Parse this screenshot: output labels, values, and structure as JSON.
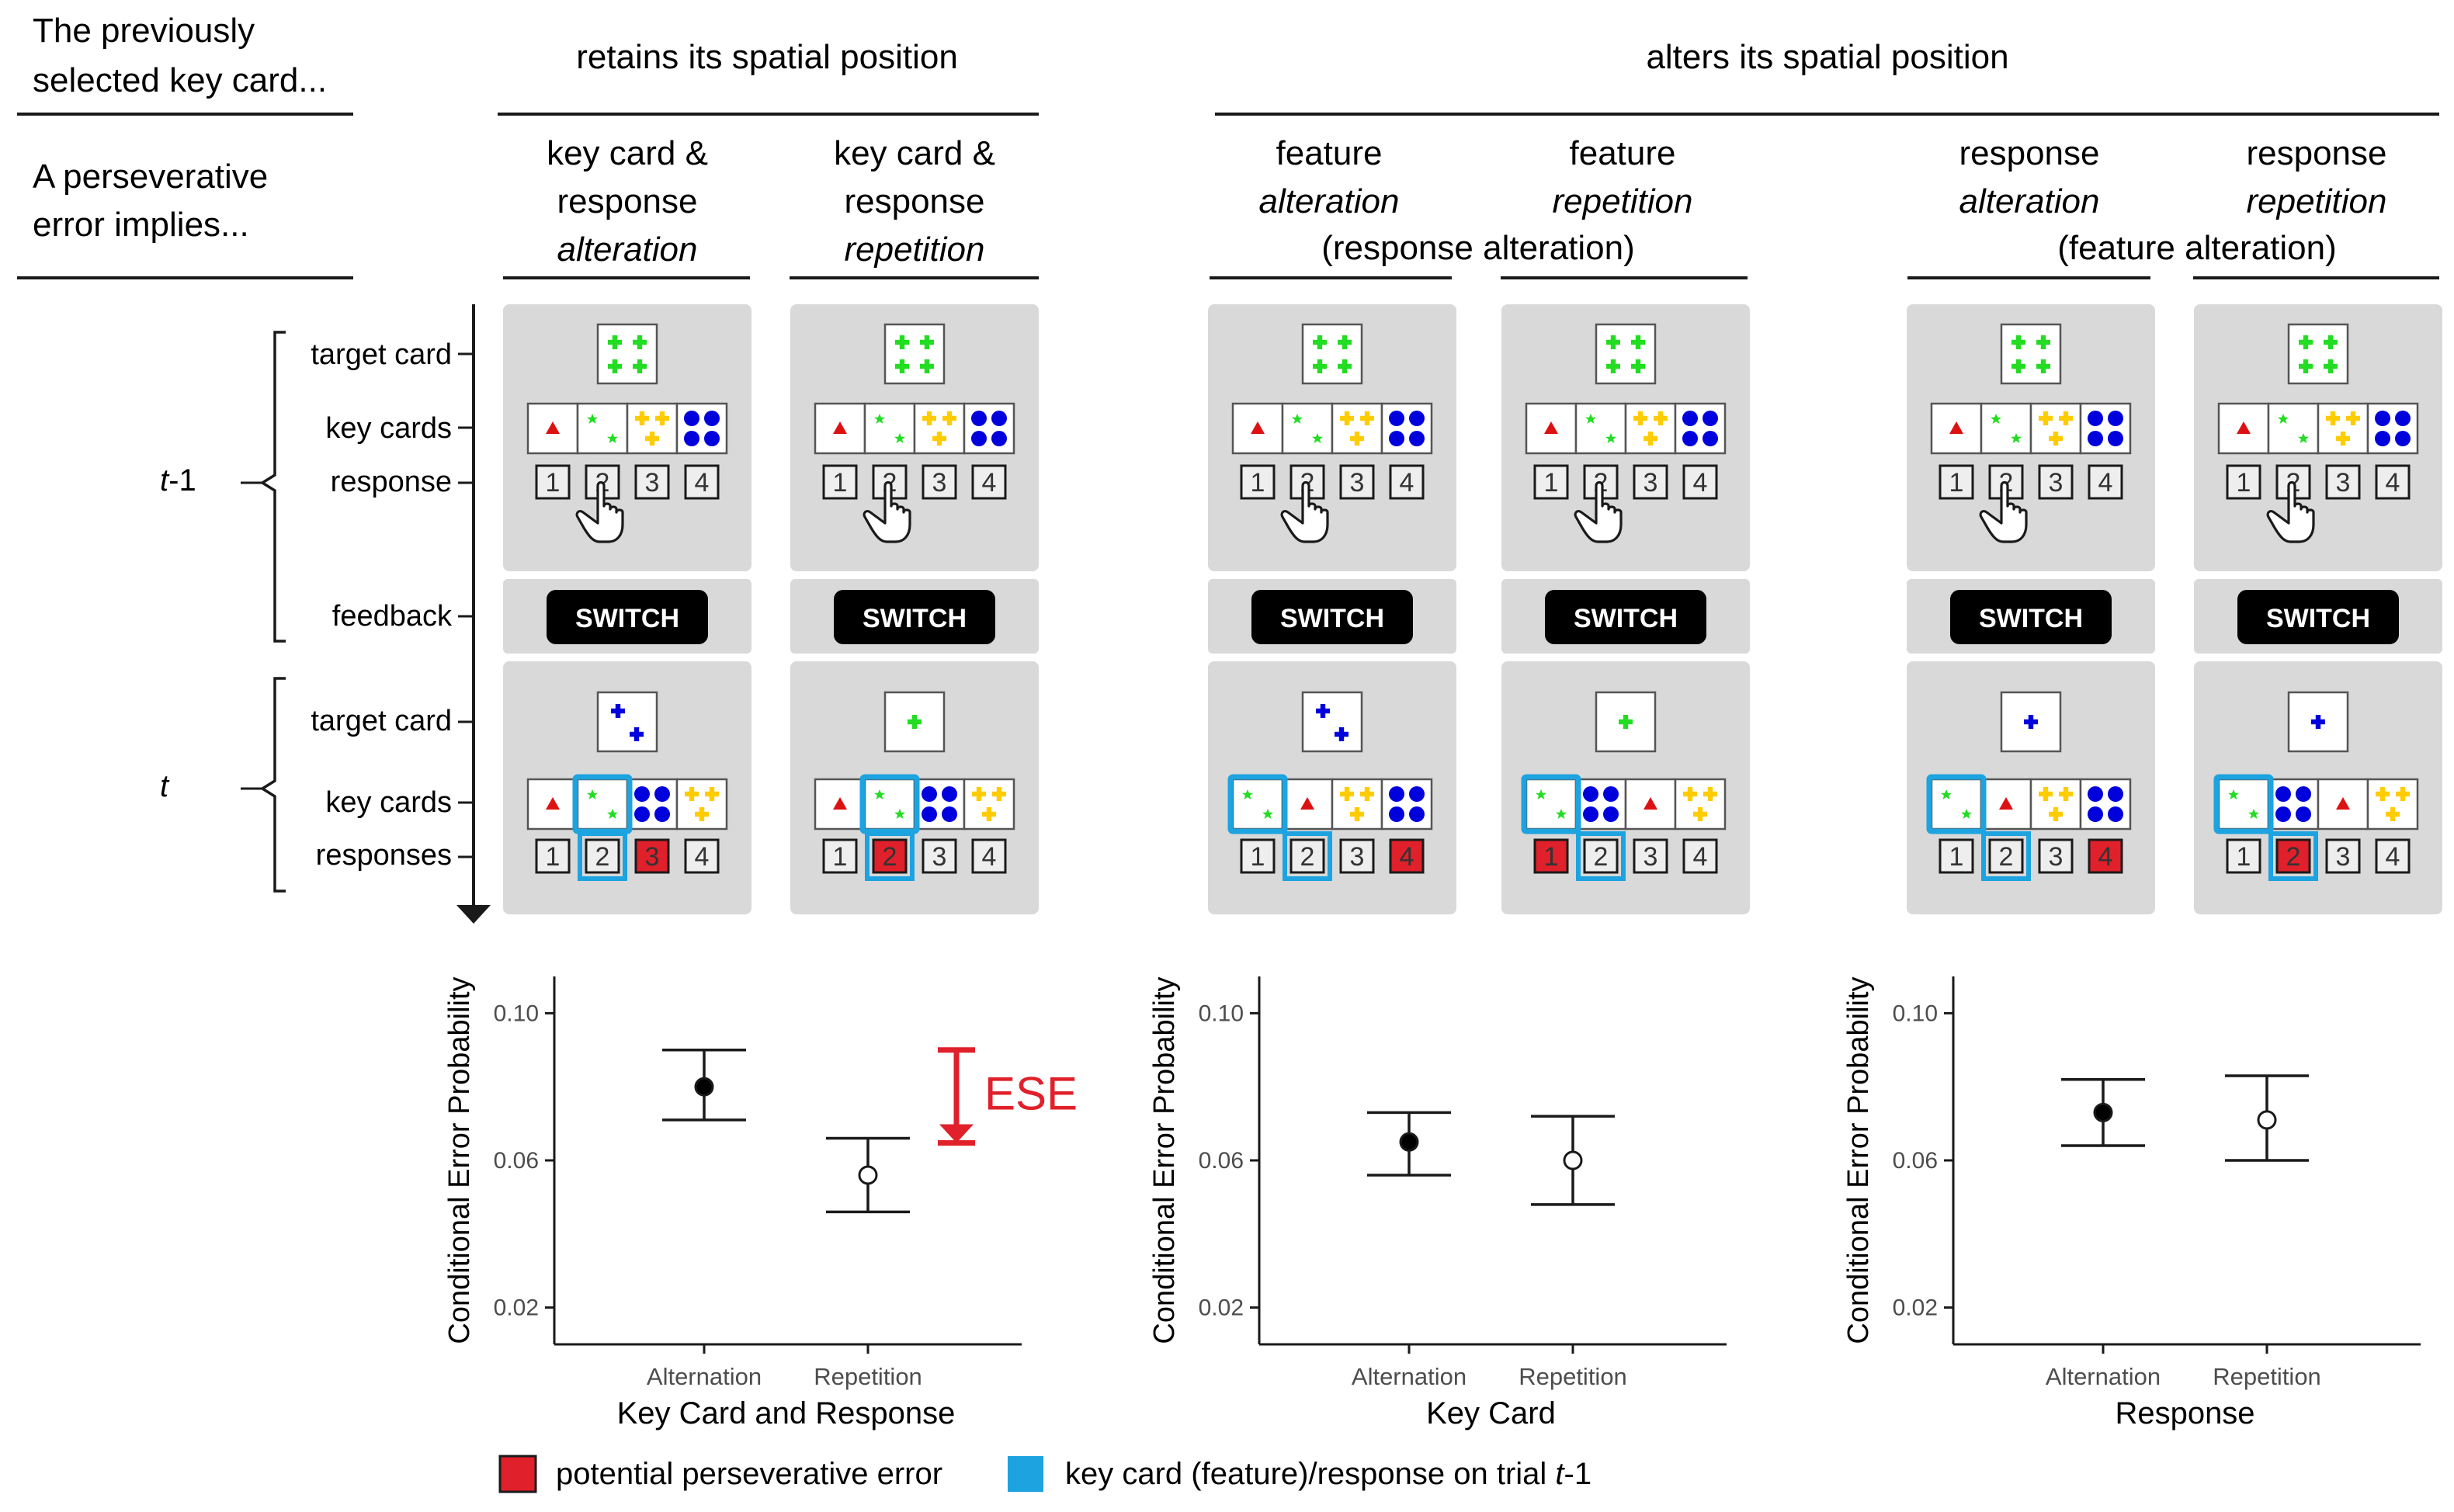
{
  "header": {
    "previously_line1": "The previously",
    "previously_line2": "selected key card...",
    "implies_line1": "A perseverative",
    "implies_line2": "error implies...",
    "retains": "retains its spatial position",
    "alters": "alters its spatial position"
  },
  "conditions": [
    {
      "line1": "key card &",
      "line2": "response",
      "line3": "alteration",
      "line3_italic": true,
      "line4": ""
    },
    {
      "line1": "key card &",
      "line2": "response",
      "line3": "repetition",
      "line3_italic": true,
      "line4": ""
    },
    {
      "line1": "feature",
      "line2": "alteration",
      "line2_italic": true,
      "line3": "",
      "line4": ""
    },
    {
      "line1": "feature",
      "line2": "repetition",
      "line2_italic": true,
      "line3": "",
      "line4": ""
    },
    {
      "line1": "response",
      "line2": "alteration",
      "line2_italic": true,
      "line3": "",
      "line4": ""
    },
    {
      "line1": "response",
      "line2": "repetition",
      "line2_italic": true,
      "line3": "",
      "line4": ""
    }
  ],
  "subnotes": {
    "feature": "(response alteration)",
    "response": "(feature alteration)"
  },
  "timeline": {
    "t1_label_t": "t",
    "t1_label_suffix": "-1",
    "t_label": "t",
    "target_card": "target card",
    "key_cards": "key cards",
    "response": "response",
    "feedback": "feedback",
    "target_card_2": "target card",
    "key_cards_2": "key cards",
    "responses": "responses"
  },
  "feedback_label": "SWITCH",
  "response_numbers": [
    "1",
    "2",
    "3",
    "4"
  ],
  "colors": {
    "panel_bg": "#d9d9d9",
    "green": "#22dd22",
    "yellow": "#ffcc00",
    "blue": "#0000dd",
    "red": "#dd1111",
    "error_red": "#e0202a",
    "cyan": "#1ca3e0",
    "ese_red": "#e0202a"
  },
  "charts": {
    "ylabel": "Conditional Error Probability",
    "y_ticks": [
      "0.10",
      "0.06",
      "0.02"
    ],
    "ese_label": "ESE"
  },
  "chart_data": [
    {
      "type": "scatter",
      "title": "",
      "xlabel": "Key Card and Response",
      "ylabel": "Conditional Error Probability",
      "categories": [
        "Alternation",
        "Repetition"
      ],
      "values": [
        0.08,
        0.056
      ],
      "error_low": [
        0.071,
        0.046
      ],
      "error_high": [
        0.09,
        0.066
      ],
      "ylim": [
        0.01,
        0.11
      ],
      "annotation": "ESE"
    },
    {
      "type": "scatter",
      "title": "",
      "xlabel": "Key Card",
      "ylabel": "Conditional Error Probability",
      "categories": [
        "Alternation",
        "Repetition"
      ],
      "values": [
        0.065,
        0.06
      ],
      "error_low": [
        0.056,
        0.048
      ],
      "error_high": [
        0.073,
        0.072
      ],
      "ylim": [
        0.01,
        0.11
      ]
    },
    {
      "type": "scatter",
      "title": "",
      "xlabel": "Response",
      "ylabel": "Conditional Error Probability",
      "categories": [
        "Alternation",
        "Repetition"
      ],
      "values": [
        0.073,
        0.071
      ],
      "error_low": [
        0.064,
        0.06
      ],
      "error_high": [
        0.082,
        0.083
      ],
      "ylim": [
        0.01,
        0.11
      ]
    }
  ],
  "legend": {
    "error": "potential perseverative  error",
    "keycard_prefix": "key card (feature)/response on trial ",
    "keycard_t": "t",
    "keycard_suffix": "-1"
  }
}
